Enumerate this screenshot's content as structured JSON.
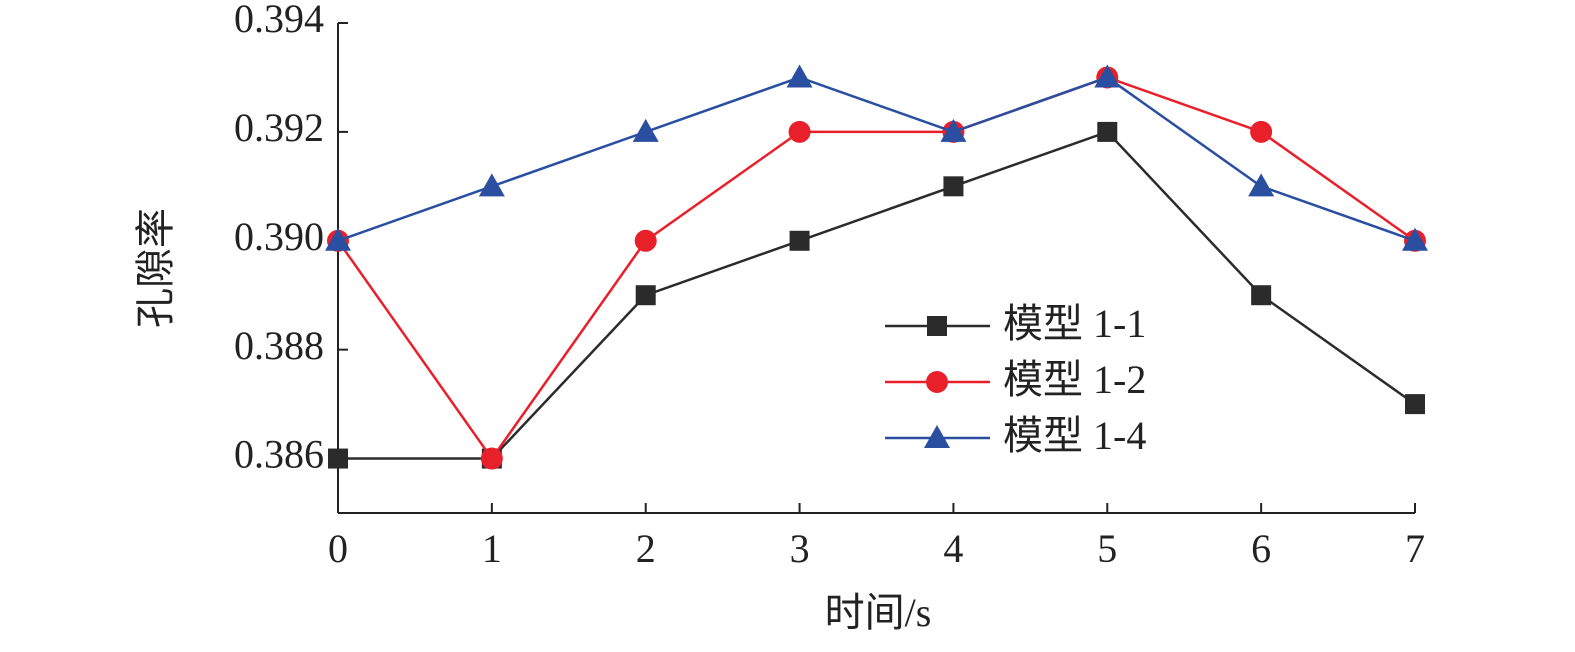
{
  "chart_data": {
    "type": "line",
    "x_label": "时间/s",
    "y_label": "孔隙率",
    "x": [
      0,
      1,
      2,
      3,
      4,
      5,
      6,
      7
    ],
    "xlim": [
      0,
      7
    ],
    "xticks": [
      0,
      1,
      2,
      3,
      4,
      5,
      6,
      7
    ],
    "ylim": [
      0.385,
      0.394
    ],
    "yticks": [
      0.386,
      0.388,
      {
        "value": 0.39,
        "label": "0.390"
      },
      0.392,
      0.394
    ],
    "legend": "center right",
    "series": [
      {
        "name": "模型 1-1",
        "color": "#2b2b2b",
        "marker": "square",
        "values": [
          0.386,
          0.386,
          0.389,
          0.39,
          0.391,
          0.392,
          0.389,
          0.387
        ]
      },
      {
        "name": "模型 1-2",
        "color": "#e8202a",
        "marker": "circle",
        "values": [
          0.39,
          0.386,
          0.39,
          0.392,
          0.392,
          0.393,
          0.392,
          0.39
        ]
      },
      {
        "name": "模型 1-4",
        "color": "#2a4ea0",
        "marker": "triangle",
        "values": [
          0.39,
          0.391,
          0.392,
          0.393,
          0.392,
          0.393,
          0.391,
          0.39
        ]
      }
    ]
  }
}
